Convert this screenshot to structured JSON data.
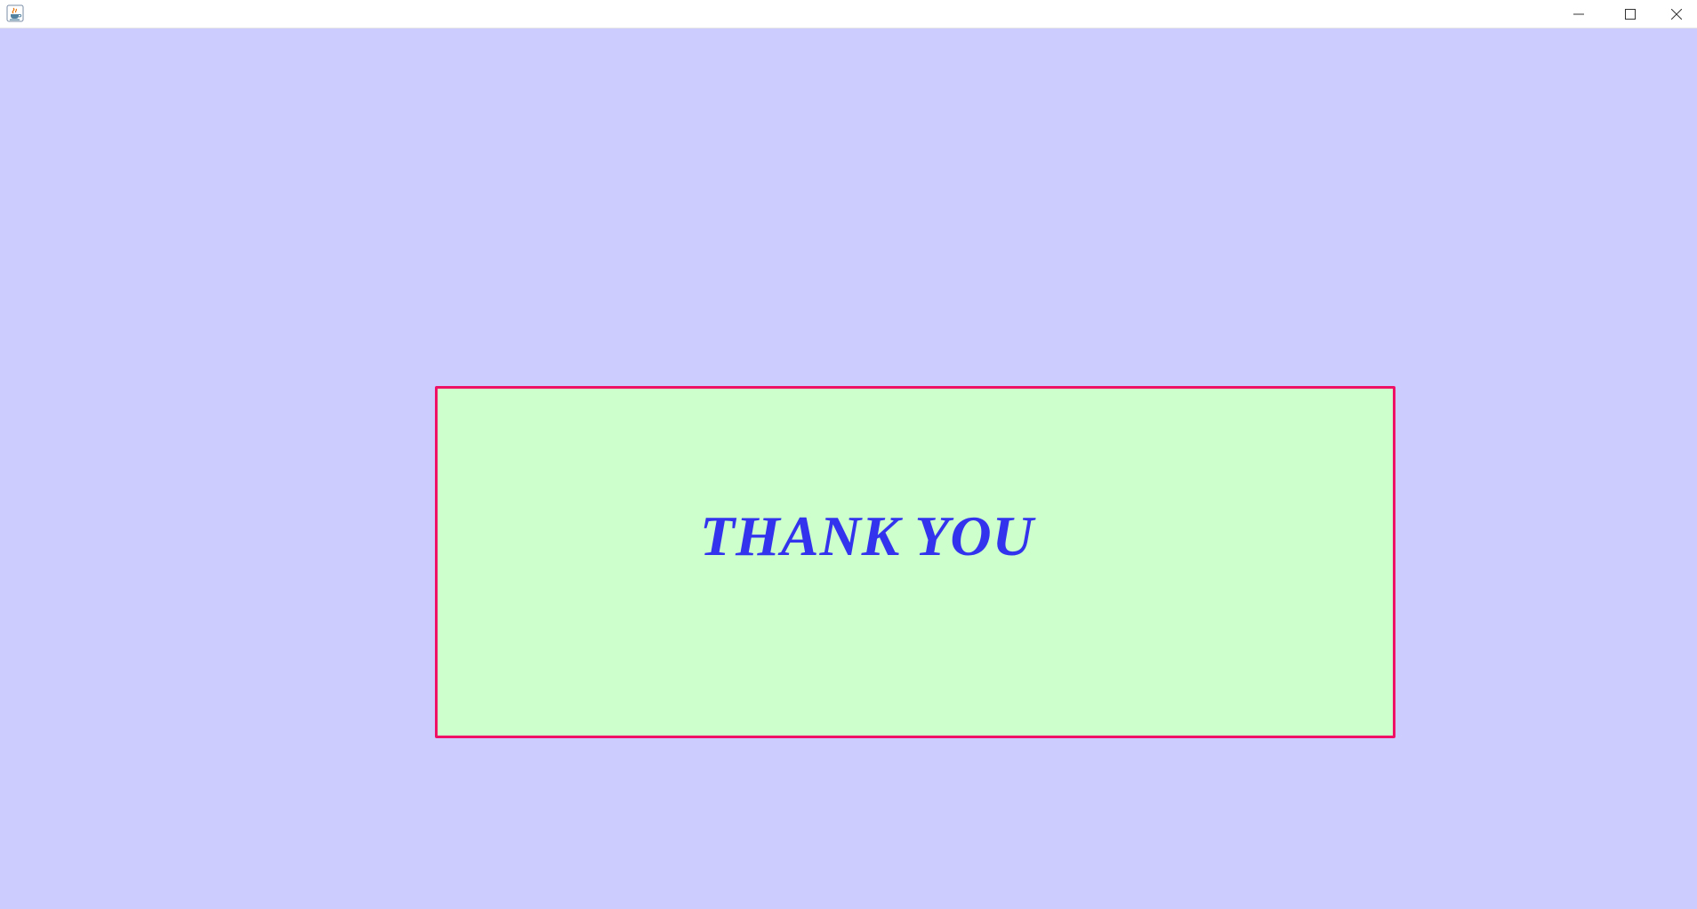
{
  "window": {
    "app_icon": "java-coffee-cup-icon",
    "controls": {
      "minimize_icon": "minimize-icon",
      "maximize_icon": "maximize-icon",
      "close_icon": "close-icon"
    }
  },
  "panel": {
    "message": "THANK YOU"
  },
  "colors": {
    "background": "#ccccff",
    "panel_fill": "#ccffcc",
    "panel_border": "#ee1166",
    "message_text": "#3333ee"
  }
}
